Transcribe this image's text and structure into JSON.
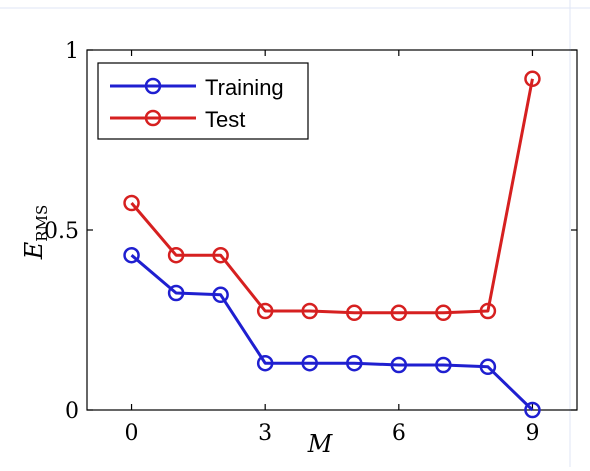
{
  "chart_data": {
    "type": "line",
    "x": [
      0,
      1,
      2,
      3,
      4,
      5,
      6,
      7,
      8,
      9
    ],
    "series": [
      {
        "name": "Training",
        "color": "#1f1fd0",
        "values": [
          0.43,
          0.325,
          0.32,
          0.13,
          0.13,
          0.13,
          0.125,
          0.125,
          0.12,
          0.0
        ]
      },
      {
        "name": "Test",
        "color": "#d62020",
        "values": [
          0.575,
          0.43,
          0.43,
          0.275,
          0.275,
          0.27,
          0.27,
          0.27,
          0.275,
          0.92
        ]
      }
    ],
    "xticks": [
      "0",
      "3",
      "6",
      "9"
    ],
    "yticks": [
      "0",
      "0.5",
      "1"
    ],
    "xlabel": "M",
    "ylabel_main": "E",
    "ylabel_sub": "RMS",
    "xlim": [
      -1,
      10
    ],
    "ylim": [
      0,
      1
    ],
    "marker": "circle",
    "grid": false,
    "legend_position": "top-left"
  }
}
